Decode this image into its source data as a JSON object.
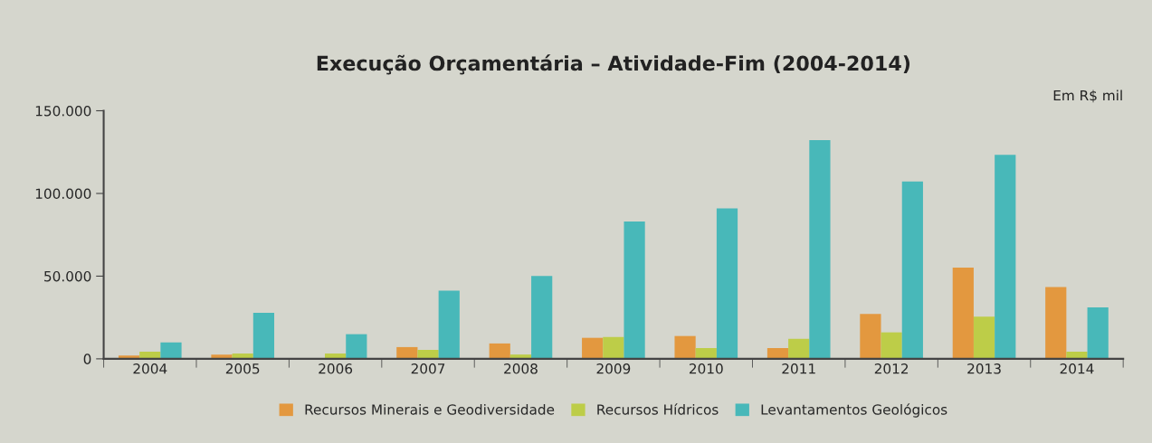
{
  "chart_data": {
    "type": "bar",
    "title": "Execução Orçamentária – Atividade-Fim (2004-2014)",
    "annotations": [
      "Em R$ mil"
    ],
    "categories": [
      "2004",
      "2005",
      "2006",
      "2007",
      "2008",
      "2009",
      "2010",
      "2011",
      "2012",
      "2013",
      "2014"
    ],
    "series": [
      {
        "name": "Recursos Minerais e Geodiversidade",
        "color": "#e3983f",
        "values": [
          2000,
          2600,
          null,
          7100,
          9300,
          12700,
          13800,
          6500,
          27200,
          55200,
          43400
        ]
      },
      {
        "name": "Recursos Hídricos",
        "color": "#bdcd48",
        "values": [
          4300,
          3200,
          3200,
          5400,
          2600,
          13200,
          6500,
          12100,
          16000,
          25500,
          4300
        ]
      },
      {
        "name": "Levantamentos Geológicos",
        "color": "#48b8b9",
        "values": [
          9900,
          27800,
          14900,
          41200,
          50100,
          83100,
          90900,
          132300,
          107200,
          123400,
          31100
        ]
      }
    ],
    "ylim": [
      0,
      150000
    ],
    "yticks": [
      0,
      {
        "value": 50000,
        "label": "50.000"
      },
      {
        "value": 100000,
        "label": "100.000"
      },
      {
        "value": 150000,
        "label": "150.000"
      }
    ],
    "grid": false,
    "legend": "bottom"
  }
}
